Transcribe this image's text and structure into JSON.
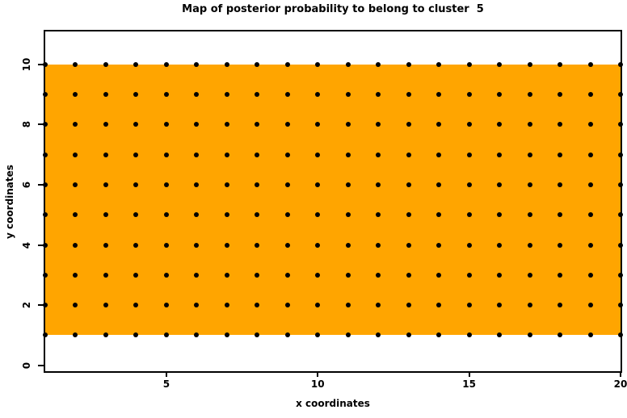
{
  "chart_data": {
    "type": "scatter",
    "title": "Map of posterior probability to belong to cluster  5",
    "xlabel": "x coordinates",
    "ylabel": "y coordinates",
    "xlim": [
      1,
      20
    ],
    "ylim": [
      -0.2,
      11.1
    ],
    "x_ticks": [
      5,
      10,
      15,
      20
    ],
    "y_ticks": [
      0,
      2,
      4,
      6,
      8,
      10
    ],
    "grid": "off",
    "legend": "none",
    "points": {
      "description": "regular grid of filled circle markers",
      "x_values": [
        1,
        2,
        3,
        4,
        5,
        6,
        7,
        8,
        9,
        10,
        11,
        12,
        13,
        14,
        15,
        16,
        17,
        18,
        19,
        20
      ],
      "y_values": [
        1,
        2,
        3,
        4,
        5,
        6,
        7,
        8,
        9,
        10
      ],
      "count": 200,
      "marker": "filled-circle",
      "color": "#000000"
    },
    "probability_region": {
      "x0": 1,
      "x1": 20,
      "y0": 1,
      "y1": 10,
      "color": "#FFA500"
    }
  },
  "colors": {
    "background": "#FFFFFF",
    "cluster_fill": "#FFA500",
    "point": "#000000",
    "axis": "#000000"
  }
}
